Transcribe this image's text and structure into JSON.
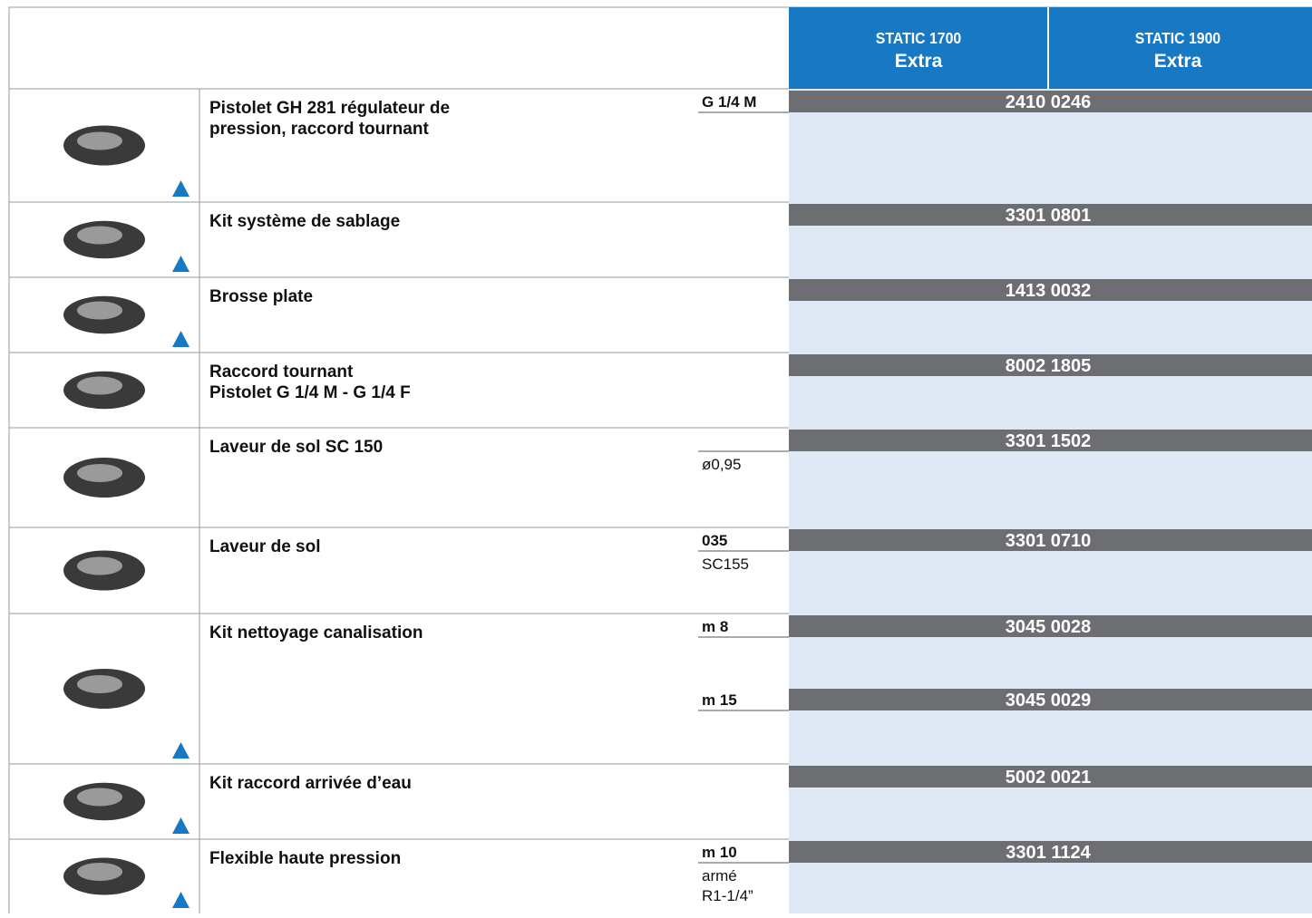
{
  "header": {
    "columns": [
      {
        "model": "STATIC 1700",
        "variant": "Extra"
      },
      {
        "model": "STATIC 1900",
        "variant": "Extra"
      }
    ]
  },
  "rows": [
    {
      "description": [
        "Pistolet GH 281 régulateur de",
        "pression, raccord tournant"
      ],
      "options": [
        {
          "spec_head": "G 1/4 M",
          "code": "2410 0246"
        }
      ]
    },
    {
      "description": [
        "Kit système de sablage"
      ],
      "options": [
        {
          "code": "3301 0801"
        }
      ]
    },
    {
      "description": [
        "Brosse plate"
      ],
      "options": [
        {
          "code": "1413 0032"
        }
      ]
    },
    {
      "description": [
        "Raccord tournant",
        "Pistolet G 1/4 M - G 1/4 F"
      ],
      "options": [
        {
          "code": "8002 1805"
        }
      ]
    },
    {
      "description": [
        "Laveur de sol SC 150"
      ],
      "options": [
        {
          "spec_note": [
            "ø0,95"
          ],
          "code": "3301 1502"
        }
      ]
    },
    {
      "description": [
        "Laveur de sol"
      ],
      "options": [
        {
          "spec_head": "035",
          "spec_note": [
            "SC155"
          ],
          "code": "3301 0710"
        }
      ]
    },
    {
      "description": [
        "Kit nettoyage canalisation"
      ],
      "options": [
        {
          "spec_head": "m 8",
          "code": "3045 0028"
        },
        {
          "spec_head": "m 15",
          "code": "3045 0029"
        }
      ]
    },
    {
      "description": [
        "Kit raccord arrivée d’eau"
      ],
      "options": [
        {
          "code": "5002 0021"
        }
      ]
    },
    {
      "description": [
        "Flexible haute pression"
      ],
      "options": [
        {
          "spec_head": "m 10",
          "spec_note": [
            "armé",
            "R1-1/4”"
          ],
          "code": "3301 1124"
        }
      ]
    }
  ]
}
